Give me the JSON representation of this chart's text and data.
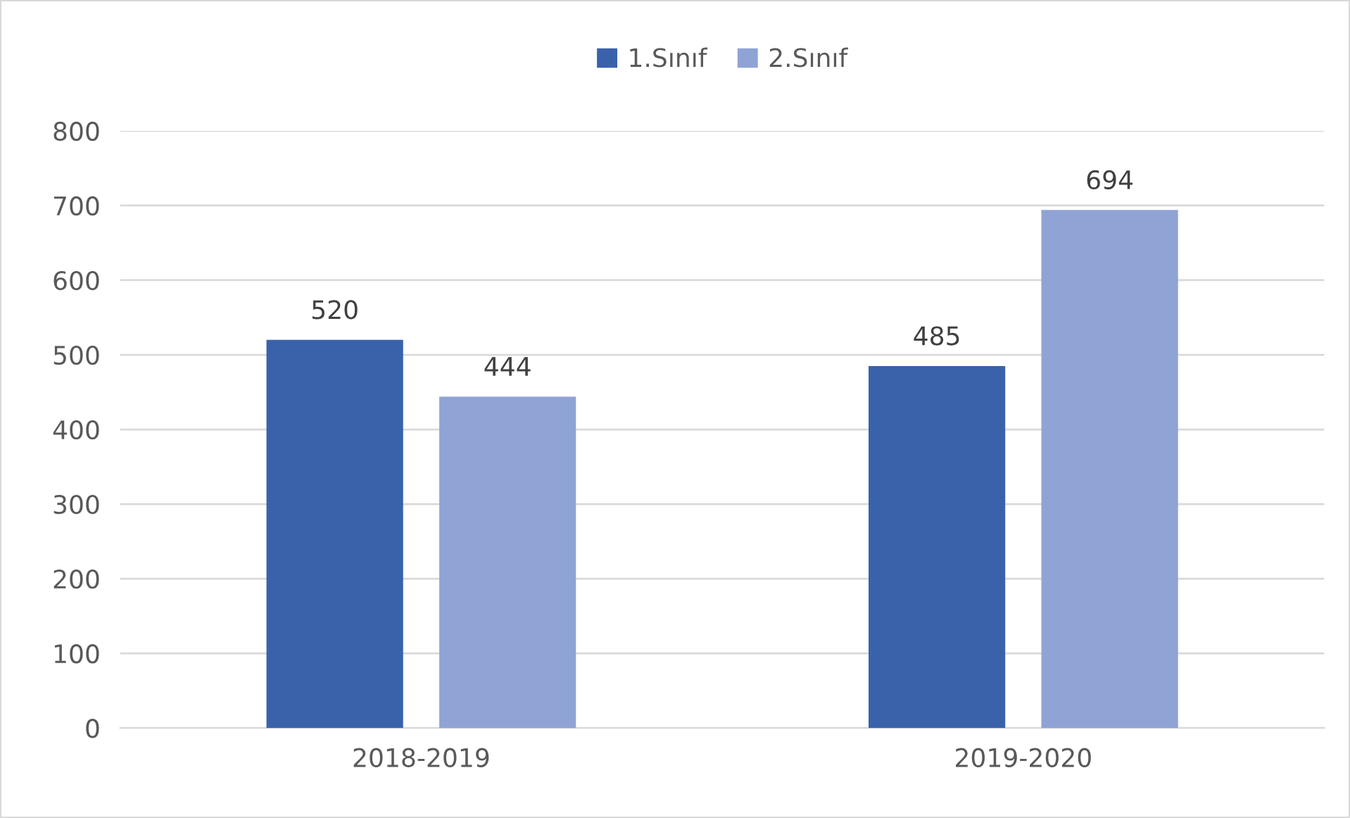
{
  "chart_data": {
    "type": "bar",
    "categories": [
      "2018-2019",
      "2019-2020"
    ],
    "series": [
      {
        "name": "1.Sınıf",
        "color": "#3a62ab",
        "values": [
          520,
          485
        ]
      },
      {
        "name": "2.Sınıf",
        "color": "#8fa3d5",
        "values": [
          444,
          694
        ]
      }
    ],
    "ylim": [
      0,
      800
    ],
    "yticks": [
      0,
      100,
      200,
      300,
      400,
      500,
      600,
      700,
      800
    ],
    "grid": "y",
    "legend": "top",
    "data_labels": true
  }
}
